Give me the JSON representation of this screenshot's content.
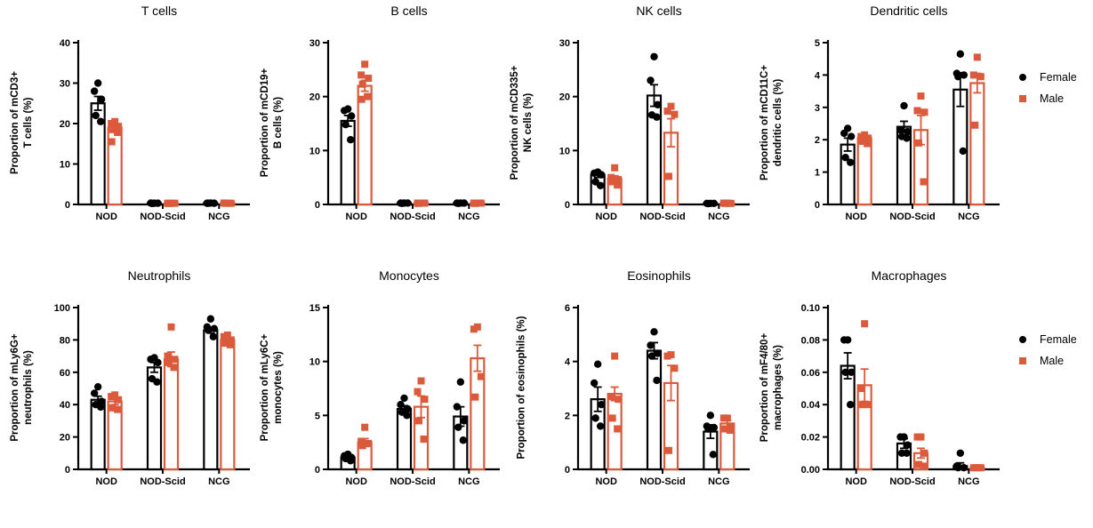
{
  "legend": {
    "female_label": "Female",
    "male_label": "Male",
    "female_color": "#000000",
    "male_color": "#DB5A3C"
  },
  "chart_data": [
    {
      "type": "bar",
      "title": "T cells",
      "ylabel": "Proportion of mCD3+\nT cells (%)",
      "ylim": [
        0,
        40
      ],
      "yticks": [
        0,
        10,
        20,
        30,
        40
      ],
      "tick_decimals": 0,
      "grid": false,
      "legend_position": "right",
      "categories": [
        "NOD",
        "NOD-Scid",
        "NCG"
      ],
      "series": [
        {
          "name": "Female",
          "color": "#000000",
          "marker": "circle",
          "means": [
            25,
            0.3,
            0.35
          ],
          "sem": [
            1.7,
            0.1,
            0.1
          ],
          "points": [
            [
              30,
              28,
              26,
              22,
              20.5
            ],
            [
              0.3,
              0.35,
              0.3,
              0.25
            ],
            [
              0.35,
              0.3,
              0.3,
              0.3
            ]
          ]
        },
        {
          "name": "Male",
          "color": "#DB5A3C",
          "marker": "square",
          "means": [
            19,
            0.3,
            0.35
          ],
          "sem": [
            0.8,
            0.1,
            0.1
          ],
          "points": [
            [
              20.5,
              20,
              19.3,
              18.5,
              17.8,
              15.5
            ],
            [
              0.3,
              0.3,
              0.3,
              0.25
            ],
            [
              0.3,
              0.35,
              0.3,
              0.3
            ]
          ]
        }
      ]
    },
    {
      "type": "bar",
      "title": "B cells",
      "ylabel": "Proportion of mCD19+\nB cells (%)",
      "ylim": [
        0,
        30
      ],
      "yticks": [
        0,
        10,
        20,
        30
      ],
      "tick_decimals": 0,
      "grid": false,
      "categories": [
        "NOD",
        "NOD-Scid",
        "NCG"
      ],
      "series": [
        {
          "name": "Female",
          "color": "#000000",
          "marker": "circle",
          "means": [
            15.5,
            0.25,
            0.25
          ],
          "sem": [
            1.0,
            0.08,
            0.08
          ],
          "points": [
            [
              17.7,
              17.4,
              16.4,
              14.8,
              12.0
            ],
            [
              0.25,
              0.25,
              0.25,
              0.2
            ],
            [
              0.25,
              0.25,
              0.25,
              0.2
            ]
          ]
        },
        {
          "name": "Male",
          "color": "#DB5A3C",
          "marker": "square",
          "means": [
            22,
            0.25,
            0.25
          ],
          "sem": [
            1.0,
            0.08,
            0.08
          ],
          "points": [
            [
              26,
              24,
              23.4,
              22.3,
              20,
              19.5
            ],
            [
              0.25,
              0.25,
              0.25,
              0.2
            ],
            [
              0.25,
              0.25,
              0.25,
              0.2
            ]
          ]
        }
      ]
    },
    {
      "type": "bar",
      "title": "NK cells",
      "ylabel": "Proportion of mCD335+\nNK cells (%)",
      "ylim": [
        0,
        30
      ],
      "yticks": [
        0,
        10,
        20,
        30
      ],
      "tick_decimals": 0,
      "grid": false,
      "legend_position": "right",
      "categories": [
        "NOD",
        "NOD-Scid",
        "NCG"
      ],
      "series": [
        {
          "name": "Female",
          "color": "#000000",
          "marker": "circle",
          "means": [
            5.5,
            20.2,
            0.2
          ],
          "sem": [
            0.5,
            2.0,
            0.06
          ],
          "points": [
            [
              6.0,
              5.8,
              5.5,
              4.2,
              3.5
            ],
            [
              27.4,
              23,
              18.5,
              16.6,
              16.2
            ],
            [
              0.2,
              0.2,
              0.2,
              0.15
            ]
          ]
        },
        {
          "name": "Male",
          "color": "#DB5A3C",
          "marker": "square",
          "means": [
            4.8,
            13.3,
            0.25
          ],
          "sem": [
            0.5,
            2.6,
            0.08
          ],
          "points": [
            [
              6.8,
              5.0,
              4.6,
              4.2,
              3.6
            ],
            [
              18.2,
              17.3,
              16.7,
              5.2
            ],
            [
              0.25,
              0.25,
              0.2,
              0.2
            ]
          ]
        }
      ]
    },
    {
      "type": "bar",
      "title": "Dendritic cells",
      "ylabel": "Proportion of mCD11C+\ndendritic cells (%)",
      "ylim": [
        0,
        5
      ],
      "yticks": [
        0,
        1,
        2,
        3,
        4,
        5
      ],
      "tick_decimals": 0,
      "grid": false,
      "categories": [
        "NOD",
        "NOD-Scid",
        "NCG"
      ],
      "series": [
        {
          "name": "Female",
          "color": "#000000",
          "marker": "circle",
          "means": [
            1.85,
            2.4,
            3.55
          ],
          "sem": [
            0.2,
            0.17,
            0.52
          ],
          "points": [
            [
              2.35,
              2.2,
              2.1,
              1.45,
              1.3
            ],
            [
              3.05,
              2.3,
              2.25,
              2.1,
              2.05
            ],
            [
              4.65,
              4.05,
              4.0,
              3.95,
              1.65
            ]
          ]
        },
        {
          "name": "Male",
          "color": "#DB5A3C",
          "marker": "square",
          "means": [
            2.05,
            2.3,
            3.75
          ],
          "sem": [
            0.06,
            0.45,
            0.3
          ],
          "points": [
            [
              2.15,
              2.1,
              2.05,
              1.95,
              1.88
            ],
            [
              3.35,
              2.9,
              2.85,
              1.9,
              0.7
            ],
            [
              4.55,
              4.0,
              3.95,
              2.45
            ]
          ]
        }
      ]
    },
    {
      "type": "bar",
      "title": "Neutrophils",
      "ylabel": "Proportion of mLy6G+\nneutrophils (%)",
      "ylim": [
        0,
        100
      ],
      "yticks": [
        0,
        20,
        40,
        60,
        80,
        100
      ],
      "tick_decimals": 0,
      "grid": false,
      "categories": [
        "NOD",
        "NOD-Scid",
        "NCG"
      ],
      "series": [
        {
          "name": "Female",
          "color": "#000000",
          "marker": "circle",
          "means": [
            43,
            63,
            86
          ],
          "sem": [
            2.2,
            3.0,
            1.8
          ],
          "points": [
            [
              51,
              47,
              42,
              40,
              38.5
            ],
            [
              69,
              68,
              66,
              56,
              54
            ],
            [
              93,
              88,
              87,
              86,
              82
            ]
          ]
        },
        {
          "name": "Male",
          "color": "#DB5A3C",
          "marker": "square",
          "means": [
            42,
            68,
            80
          ],
          "sem": [
            2.0,
            4.5,
            1.3
          ],
          "points": [
            [
              46,
              45,
              43,
              38,
              37
            ],
            [
              88,
              70,
              68,
              66,
              63
            ],
            [
              83,
              82,
              80,
              78,
              77
            ]
          ]
        }
      ]
    },
    {
      "type": "bar",
      "title": "Monocytes",
      "ylabel": "Proportion of mLy6C+\nmonocytes (%)",
      "ylim": [
        0,
        15
      ],
      "yticks": [
        0,
        5,
        10,
        15
      ],
      "tick_decimals": 0,
      "grid": false,
      "categories": [
        "NOD",
        "NOD-Scid",
        "NCG"
      ],
      "series": [
        {
          "name": "Female",
          "color": "#000000",
          "marker": "circle",
          "means": [
            1.1,
            5.6,
            4.9
          ],
          "sem": [
            0.15,
            0.3,
            0.9
          ],
          "points": [
            [
              1.4,
              1.25,
              1.1,
              1.0,
              0.8
            ],
            [
              6.6,
              6.0,
              5.6,
              5.3,
              5.0
            ],
            [
              8.1,
              5.8,
              4.5,
              3.9,
              2.7
            ]
          ]
        },
        {
          "name": "Male",
          "color": "#DB5A3C",
          "marker": "square",
          "means": [
            2.5,
            5.8,
            10.3
          ],
          "sem": [
            0.35,
            1.0,
            1.2
          ],
          "points": [
            [
              3.9,
              2.6,
              2.4,
              2.2
            ],
            [
              8.2,
              7.2,
              6.5,
              4.5,
              2.8
            ],
            [
              13.2,
              13.0,
              8.6,
              6.7
            ]
          ]
        }
      ]
    },
    {
      "type": "bar",
      "title": "Eosinophils",
      "ylabel": "Proportion of eosinophils (%)",
      "ylim": [
        0,
        6
      ],
      "yticks": [
        0,
        2,
        4,
        6
      ],
      "tick_decimals": 0,
      "grid": false,
      "categories": [
        "NOD",
        "NOD-Scid",
        "NCG"
      ],
      "series": [
        {
          "name": "Female",
          "color": "#000000",
          "marker": "circle",
          "means": [
            2.6,
            4.4,
            1.4
          ],
          "sem": [
            0.45,
            0.3,
            0.25
          ],
          "points": [
            [
              3.9,
              3.2,
              2.4,
              1.9,
              1.6
            ],
            [
              5.1,
              4.6,
              4.3,
              4.2,
              3.3
            ],
            [
              2.0,
              1.6,
              1.55,
              1.5,
              0.55
            ]
          ]
        },
        {
          "name": "Male",
          "color": "#DB5A3C",
          "marker": "square",
          "means": [
            2.8,
            3.2,
            1.7
          ],
          "sem": [
            0.25,
            0.65,
            0.12
          ],
          "points": [
            [
              4.2,
              2.7,
              2.6,
              1.9,
              1.5
            ],
            [
              4.25,
              4.2,
              3.75,
              0.7
            ],
            [
              1.9,
              1.9,
              1.6,
              1.5,
              1.45
            ]
          ]
        }
      ]
    },
    {
      "type": "bar",
      "title": "Macrophages",
      "ylabel": "Proportion of mF4/80+\nmacrophages (%)",
      "ylim": [
        0,
        0.1
      ],
      "yticks": [
        0,
        0.02,
        0.04,
        0.06,
        0.08,
        0.1
      ],
      "tick_decimals": 2,
      "grid": false,
      "legend_position": "right",
      "categories": [
        "NOD",
        "NOD-Scid",
        "NCG"
      ],
      "series": [
        {
          "name": "Female",
          "color": "#000000",
          "marker": "circle",
          "means": [
            0.064,
            0.016,
            0.002
          ],
          "sem": [
            0.008,
            0.003,
            0.002
          ],
          "points": [
            [
              0.08,
              0.08,
              0.06,
              0.06,
              0.04
            ],
            [
              0.02,
              0.02,
              0.015,
              0.01,
              0.01
            ],
            [
              0.01,
              0.002,
              0.001,
              0.001
            ]
          ]
        },
        {
          "name": "Male",
          "color": "#DB5A3C",
          "marker": "square",
          "means": [
            0.052,
            0.01,
            0.001
          ],
          "sem": [
            0.01,
            0.003,
            0.001
          ],
          "points": [
            [
              0.09,
              0.05,
              0.04,
              0.04
            ],
            [
              0.02,
              0.02,
              0.01,
              0.003,
              0.002
            ],
            [
              0.001,
              0.001,
              0.001
            ]
          ]
        }
      ]
    }
  ]
}
